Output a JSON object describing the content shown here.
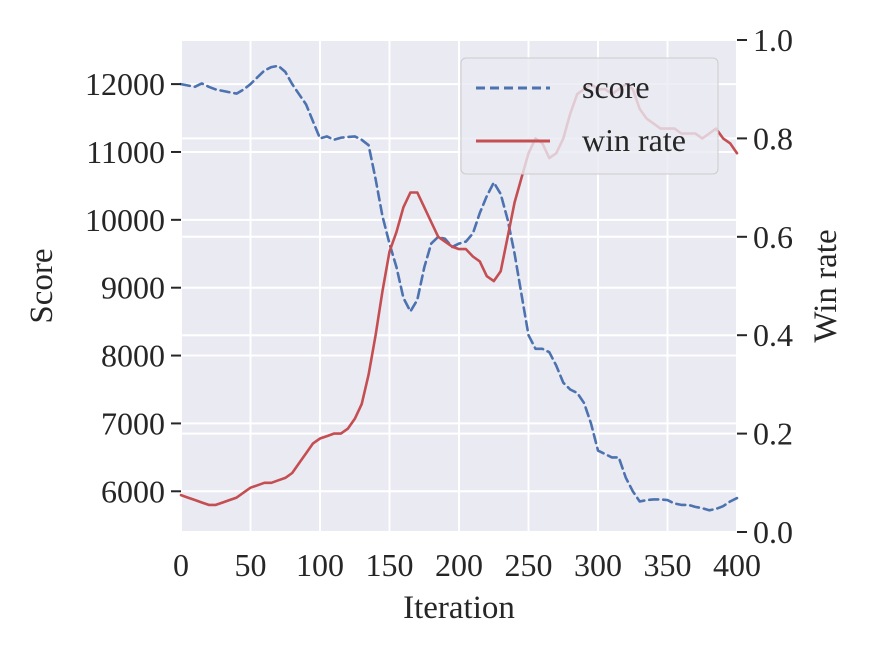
{
  "chart_data": {
    "type": "line",
    "xlabel": "Iteration",
    "ylabel": "Score",
    "y2label": "Win rate",
    "xlim": [
      0,
      400
    ],
    "ylim": [
      5400,
      12650
    ],
    "y2lim": [
      0.0,
      1.0
    ],
    "xticks": [
      "0",
      "50",
      "100",
      "150",
      "200",
      "250",
      "300",
      "350",
      "400"
    ],
    "yticks": [
      "6000",
      "7000",
      "8000",
      "9000",
      "10000",
      "11000",
      "12000"
    ],
    "y2ticks": [
      "0.0",
      "0.2",
      "0.4",
      "0.6",
      "0.8",
      "1.0"
    ],
    "grid": true,
    "background": "#eaeaf2",
    "legend_position": "top-right",
    "series": [
      {
        "name": "score",
        "axis": "left",
        "style": "dashed",
        "color": "#4c72b0",
        "x": [
          0,
          5,
          10,
          15,
          20,
          25,
          30,
          35,
          40,
          45,
          50,
          55,
          60,
          65,
          70,
          75,
          80,
          85,
          90,
          95,
          100,
          105,
          110,
          115,
          120,
          125,
          130,
          135,
          140,
          145,
          150,
          155,
          160,
          165,
          170,
          175,
          180,
          185,
          190,
          195,
          200,
          205,
          210,
          215,
          220,
          225,
          230,
          235,
          240,
          245,
          250,
          255,
          260,
          265,
          270,
          275,
          280,
          285,
          290,
          295,
          300,
          305,
          310,
          315,
          320,
          325,
          330,
          335,
          340,
          345,
          350,
          355,
          360,
          365,
          370,
          375,
          380,
          385,
          390,
          395,
          400
        ],
        "values": [
          12000,
          11980,
          11960,
          12010,
          11960,
          11920,
          11900,
          11880,
          11860,
          11920,
          12000,
          12100,
          12200,
          12250,
          12270,
          12180,
          12000,
          11850,
          11700,
          11450,
          11200,
          11230,
          11180,
          11210,
          11220,
          11230,
          11180,
          11100,
          10600,
          10050,
          9650,
          9300,
          8850,
          8650,
          8820,
          9300,
          9650,
          9750,
          9720,
          9600,
          9650,
          9680,
          9800,
          10100,
          10350,
          10550,
          10380,
          10000,
          9500,
          8900,
          8300,
          8100,
          8100,
          8050,
          7850,
          7600,
          7500,
          7450,
          7300,
          7000,
          6600,
          6550,
          6500,
          6500,
          6200,
          6000,
          5850,
          5870,
          5880,
          5880,
          5870,
          5820,
          5800,
          5800,
          5770,
          5750,
          5720,
          5740,
          5780,
          5850,
          5900
        ]
      },
      {
        "name": "win rate",
        "axis": "right",
        "style": "solid",
        "color": "#c44e52",
        "x": [
          0,
          5,
          10,
          15,
          20,
          25,
          30,
          35,
          40,
          45,
          50,
          55,
          60,
          65,
          70,
          75,
          80,
          85,
          90,
          95,
          100,
          105,
          110,
          115,
          120,
          125,
          130,
          135,
          140,
          145,
          150,
          155,
          160,
          165,
          170,
          175,
          180,
          185,
          190,
          195,
          200,
          205,
          210,
          215,
          220,
          225,
          230,
          235,
          240,
          245,
          250,
          255,
          260,
          265,
          270,
          275,
          280,
          285,
          290,
          295,
          300,
          305,
          310,
          315,
          320,
          325,
          330,
          335,
          340,
          345,
          350,
          355,
          360,
          365,
          370,
          375,
          380,
          385,
          390,
          395,
          400
        ],
        "values": [
          0.075,
          0.07,
          0.065,
          0.06,
          0.055,
          0.055,
          0.06,
          0.065,
          0.07,
          0.08,
          0.09,
          0.095,
          0.1,
          0.1,
          0.105,
          0.11,
          0.12,
          0.14,
          0.16,
          0.18,
          0.19,
          0.195,
          0.2,
          0.2,
          0.21,
          0.23,
          0.26,
          0.32,
          0.4,
          0.49,
          0.57,
          0.61,
          0.66,
          0.69,
          0.69,
          0.66,
          0.63,
          0.6,
          0.59,
          0.58,
          0.575,
          0.575,
          0.56,
          0.55,
          0.52,
          0.51,
          0.53,
          0.6,
          0.67,
          0.72,
          0.77,
          0.8,
          0.79,
          0.76,
          0.77,
          0.8,
          0.85,
          0.89,
          0.9,
          0.91,
          0.9,
          0.9,
          0.89,
          0.9,
          0.91,
          0.9,
          0.86,
          0.84,
          0.83,
          0.82,
          0.82,
          0.82,
          0.81,
          0.81,
          0.81,
          0.8,
          0.81,
          0.82,
          0.8,
          0.79,
          0.77
        ]
      }
    ]
  }
}
